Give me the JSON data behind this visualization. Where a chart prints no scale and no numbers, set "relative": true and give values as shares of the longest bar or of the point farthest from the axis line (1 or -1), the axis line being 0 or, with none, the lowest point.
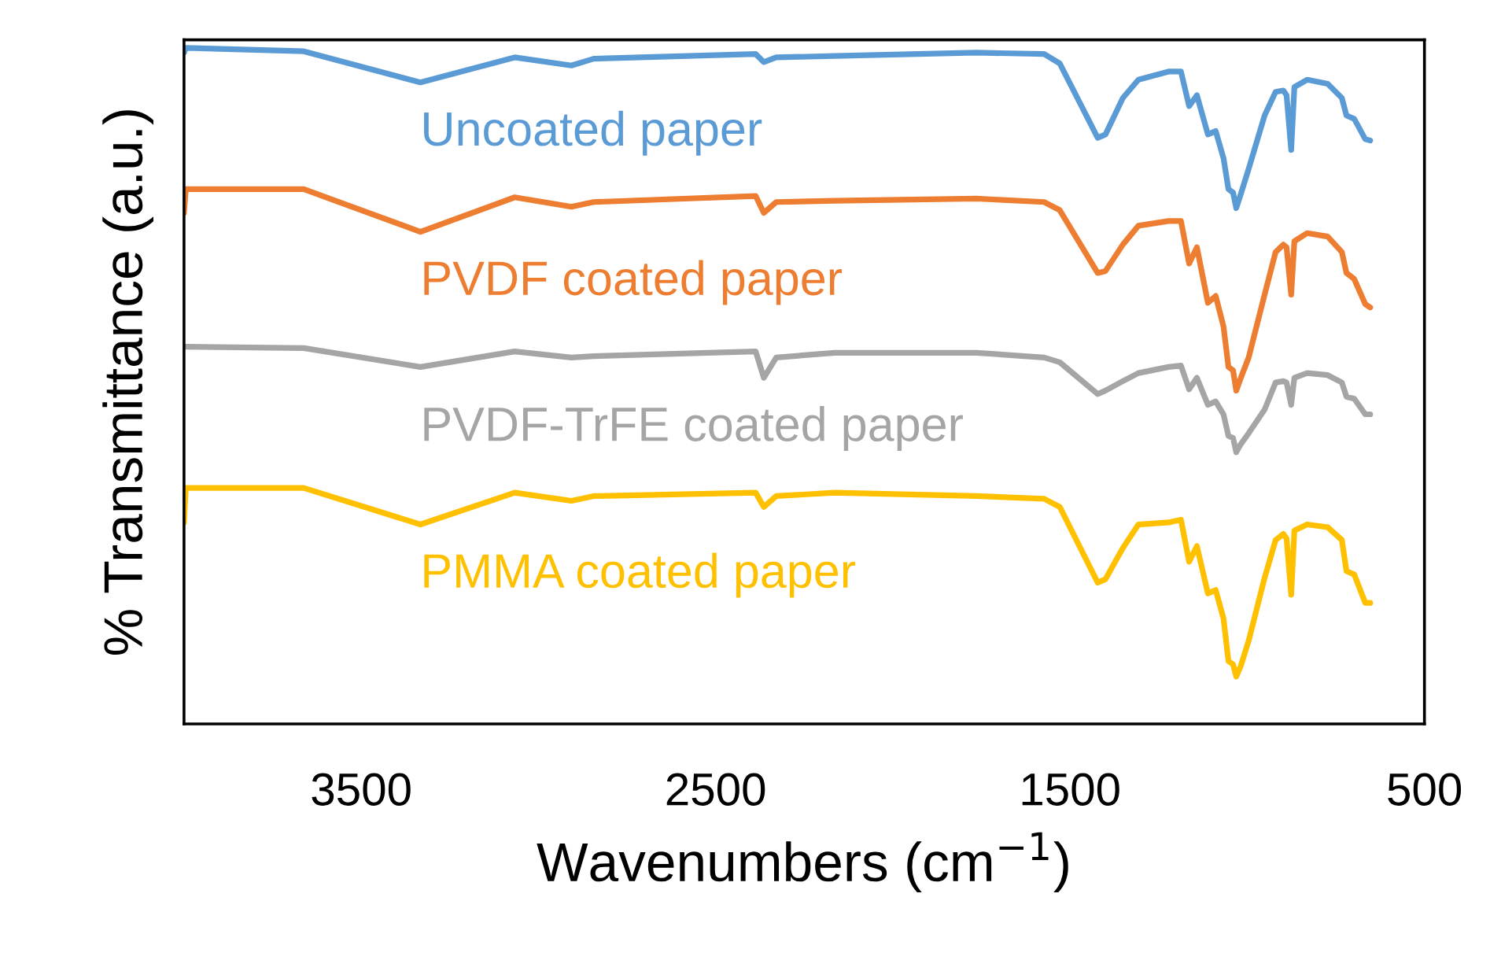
{
  "chart_data": {
    "type": "line",
    "relative": true,
    "xlabel": "Wavenumbers (cm$^{−1}$)",
    "ylabel": "% Transmittance (a.u.)",
    "xlim": [
      4000,
      500
    ],
    "xticks": [
      3500,
      2500,
      1500,
      500
    ],
    "tick_labels": "x",
    "x": [
      4000,
      3995,
      3662,
      3333,
      3067,
      2907,
      2844,
      2387,
      2364,
      2329,
      2164,
      1764,
      1573,
      1529,
      1422,
      1400,
      1351,
      1307,
      1222,
      1187,
      1164,
      1142,
      1111,
      1089,
      1067,
      1053,
      1040,
      1031,
      1018,
      996,
      951,
      920,
      898,
      889,
      876,
      867,
      831,
      773,
      733,
      720,
      698,
      667,
      653
    ],
    "series": [
      {
        "name": "Uncoated paper",
        "color": "#5b9bd5",
        "values": [
          0.993,
          1,
          0.995,
          0.949,
          0.986,
          0.974,
          0.984,
          0.991,
          0.979,
          0.986,
          0.988,
          0.993,
          0.991,
          0.977,
          0.867,
          0.872,
          0.926,
          0.953,
          0.965,
          0.965,
          0.914,
          0.93,
          0.872,
          0.877,
          0.837,
          0.791,
          0.786,
          0.763,
          0.784,
          0.821,
          0.9,
          0.935,
          0.937,
          0.93,
          0.849,
          0.942,
          0.953,
          0.947,
          0.926,
          0.9,
          0.895,
          0.865,
          0.863
        ]
      },
      {
        "name": "PVDF coated paper",
        "color": "#ed7d31",
        "values": [
          0.756,
          0.791,
          0.791,
          0.728,
          0.779,
          0.765,
          0.772,
          0.781,
          0.756,
          0.772,
          0.774,
          0.777,
          0.772,
          0.76,
          0.667,
          0.67,
          0.709,
          0.737,
          0.744,
          0.744,
          0.681,
          0.705,
          0.623,
          0.633,
          0.588,
          0.528,
          0.523,
          0.493,
          0.512,
          0.542,
          0.635,
          0.698,
          0.709,
          0.705,
          0.635,
          0.714,
          0.726,
          0.721,
          0.698,
          0.667,
          0.658,
          0.621,
          0.616
        ]
      },
      {
        "name": "PVDF-TrFE coated paper",
        "color": "#a5a5a5",
        "values": [
          0.558,
          0.558,
          0.556,
          0.528,
          0.551,
          0.542,
          0.544,
          0.551,
          0.512,
          0.542,
          0.549,
          0.549,
          0.542,
          0.535,
          0.488,
          0.493,
          0.507,
          0.519,
          0.528,
          0.53,
          0.495,
          0.512,
          0.472,
          0.477,
          0.458,
          0.426,
          0.423,
          0.402,
          0.414,
          0.43,
          0.465,
          0.505,
          0.507,
          0.505,
          0.472,
          0.512,
          0.519,
          0.516,
          0.505,
          0.484,
          0.481,
          0.458,
          0.458
        ]
      },
      {
        "name": "PMMA coated paper",
        "color": "#ffc000",
        "values": [
          0.298,
          0.349,
          0.349,
          0.295,
          0.342,
          0.33,
          0.337,
          0.342,
          0.321,
          0.337,
          0.342,
          0.337,
          0.333,
          0.321,
          0.209,
          0.214,
          0.26,
          0.295,
          0.298,
          0.302,
          0.24,
          0.263,
          0.193,
          0.198,
          0.156,
          0.093,
          0.088,
          0.07,
          0.086,
          0.123,
          0.216,
          0.272,
          0.281,
          0.274,
          0.191,
          0.286,
          0.295,
          0.291,
          0.272,
          0.226,
          0.221,
          0.179,
          0.179
        ]
      }
    ]
  }
}
